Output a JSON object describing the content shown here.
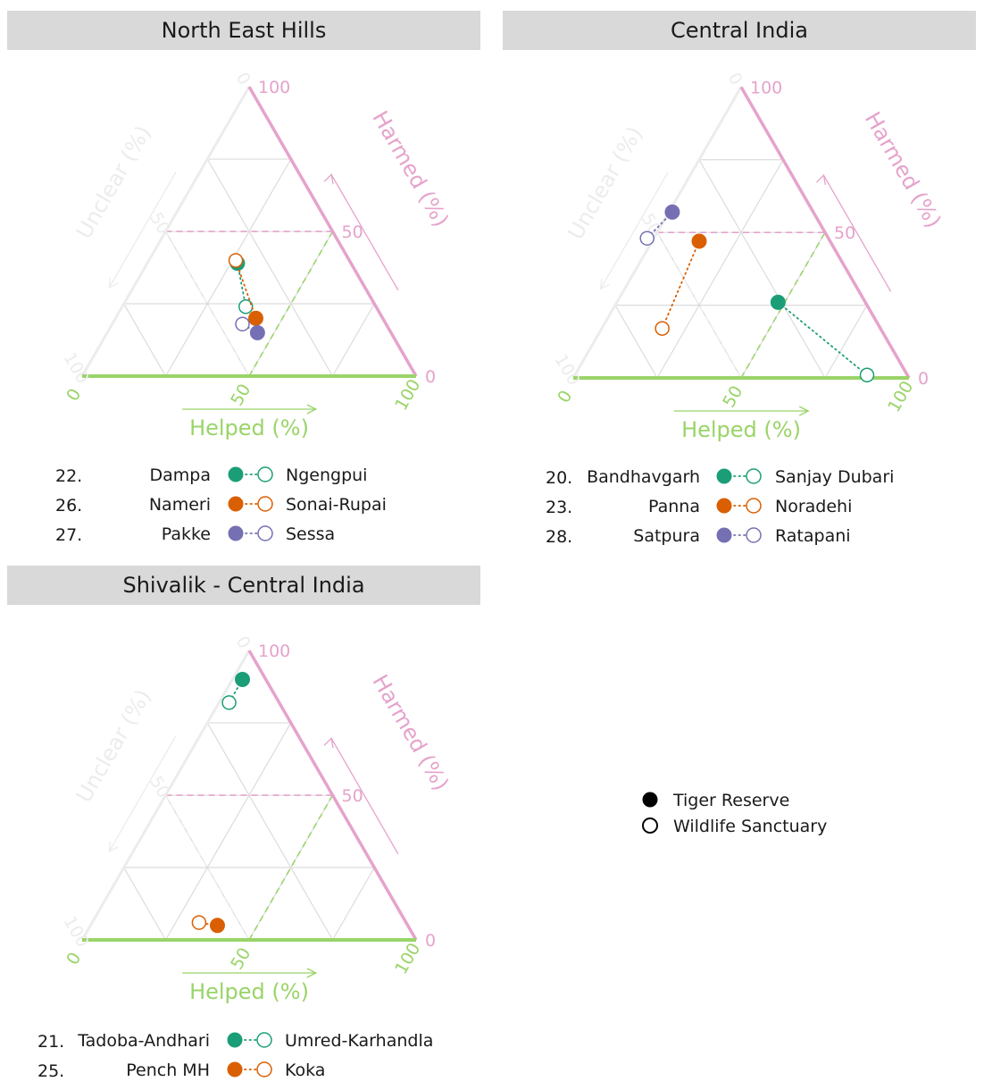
{
  "colors": {
    "helped": "#99d468",
    "harmed": "#e5a3cb",
    "unclear": "#ececec",
    "grid": "#dcdcdc",
    "green": "#1b9e77",
    "orange": "#d95f02",
    "purple": "#7570b3"
  },
  "chart_data": [
    {
      "type": "ternary",
      "title": "North East Hills",
      "axes": {
        "helped": {
          "label": "Helped (%)",
          "ticks": [
            "0",
            "50",
            "100"
          ]
        },
        "harmed": {
          "label": "Harmed (%)",
          "ticks": [
            "0",
            "50",
            "100"
          ]
        },
        "unclear": {
          "label": "Unclear (%)",
          "ticks": [
            "0",
            "50",
            "100"
          ]
        }
      },
      "pairs": [
        {
          "num": "22.",
          "reserve": "Dampa",
          "sanctuary": "Ngengpui",
          "color": "green",
          "reserve_point": {
            "helped": 27,
            "harmed": 39
          },
          "sanctuary_point": {
            "helped": 37,
            "harmed": 24
          }
        },
        {
          "num": "26.",
          "reserve": "Nameri",
          "sanctuary": "Sonai-Rupai",
          "color": "orange",
          "reserve_point": {
            "helped": 42,
            "harmed": 20
          },
          "sanctuary_point": {
            "helped": 26,
            "harmed": 40
          }
        },
        {
          "num": "27.",
          "reserve": "Pakke",
          "sanctuary": "Sessa",
          "color": "purple",
          "reserve_point": {
            "helped": 45,
            "harmed": 15
          },
          "sanctuary_point": {
            "helped": 39,
            "harmed": 18
          }
        }
      ]
    },
    {
      "type": "ternary",
      "title": "Central India",
      "axes": {
        "helped": {
          "label": "Helped (%)",
          "ticks": [
            "0",
            "50",
            "100"
          ]
        },
        "harmed": {
          "label": "Harmed (%)",
          "ticks": [
            "0",
            "50",
            "100"
          ]
        },
        "unclear": {
          "label": "Unclear (%)",
          "ticks": [
            "0",
            "50",
            "100"
          ]
        }
      },
      "pairs": [
        {
          "num": "20.",
          "reserve": "Bandhavgarh",
          "sanctuary": "Sanjay Dubari",
          "color": "green",
          "reserve_point": {
            "helped": 48,
            "harmed": 26
          },
          "sanctuary_point": {
            "helped": 87,
            "harmed": 1
          }
        },
        {
          "num": "23.",
          "reserve": "Panna",
          "sanctuary": "Noradehi",
          "color": "orange",
          "reserve_point": {
            "helped": 14,
            "harmed": 47
          },
          "sanctuary_point": {
            "helped": 18,
            "harmed": 17
          }
        },
        {
          "num": "28.",
          "reserve": "Satpura",
          "sanctuary": "Ratapani",
          "color": "purple",
          "reserve_point": {
            "helped": 1,
            "harmed": 57
          },
          "sanctuary_point": {
            "helped": -2,
            "harmed": 48
          }
        }
      ]
    },
    {
      "type": "ternary",
      "title": "Shivalik - Central India",
      "axes": {
        "helped": {
          "label": "Helped (%)",
          "ticks": [
            "0",
            "50",
            "100"
          ]
        },
        "harmed": {
          "label": "Harmed (%)",
          "ticks": [
            "0",
            "50",
            "100"
          ]
        },
        "unclear": {
          "label": "Unclear (%)",
          "ticks": [
            "0",
            "50",
            "100"
          ]
        }
      },
      "pairs": [
        {
          "num": "21.",
          "reserve": "Tadoba-Andhari",
          "sanctuary": "Umred-Karhandla",
          "color": "green",
          "reserve_point": {
            "helped": 3,
            "harmed": 90
          },
          "sanctuary_point": {
            "helped": 3,
            "harmed": 82
          }
        },
        {
          "num": "25.",
          "reserve": "Pench MH",
          "sanctuary": "Koka",
          "color": "orange",
          "reserve_point": {
            "helped": 38,
            "harmed": 5
          },
          "sanctuary_point": {
            "helped": 32,
            "harmed": 6
          }
        }
      ]
    }
  ],
  "legend": {
    "filled": "Tiger Reserve",
    "open": "Wildlife Sanctuary"
  }
}
